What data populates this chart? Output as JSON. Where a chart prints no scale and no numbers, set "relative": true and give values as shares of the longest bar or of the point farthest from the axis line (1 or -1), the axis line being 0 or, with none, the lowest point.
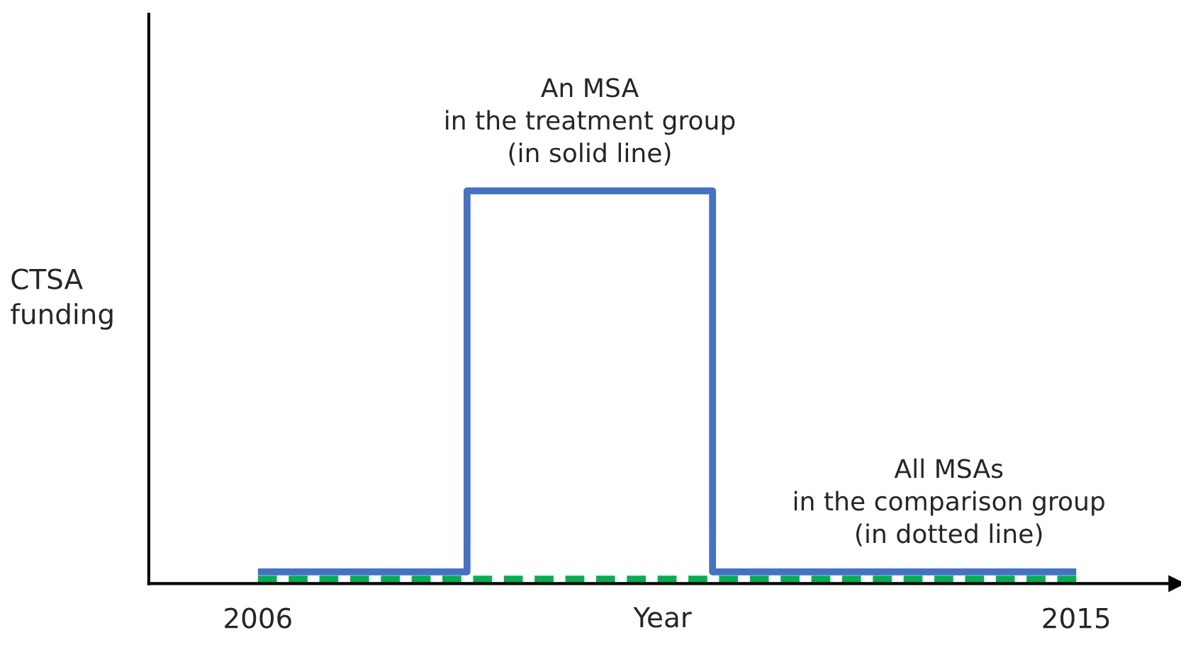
{
  "chart_data": {
    "type": "line",
    "relative": true,
    "xlabel": "Year",
    "ylabel": "CTSA\nfunding",
    "x": [
      2006,
      2008.3,
      2008.3,
      2011,
      2011,
      2015
    ],
    "xlim": [
      2004.8,
      2016.1
    ],
    "xticks": [
      2006,
      2015
    ],
    "grid": false,
    "legend": false,
    "marker": "none",
    "series": [
      {
        "color": "#4472c4",
        "line_style": "solid",
        "values": [
          0.03,
          0.03,
          1,
          1,
          0.03,
          0.03
        ]
      },
      {
        "color": "#00b050",
        "line_style": "dashed",
        "x": [
          2006,
          2015
        ],
        "values": [
          0.01,
          0.01
        ]
      }
    ],
    "annotations": [
      {
        "text": "An MSA\nin the treatment group\n(in solid line)",
        "x": 2009.65,
        "y": 1
      },
      {
        "text": "All MSAs\nin the comparison group\n(in dotted line)",
        "x": 2013.6,
        "y": 0.03
      }
    ]
  }
}
